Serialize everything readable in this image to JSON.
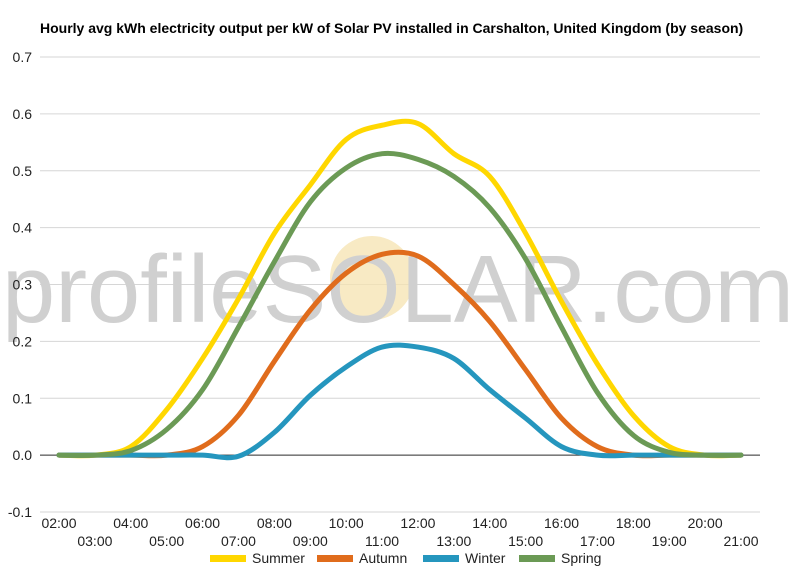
{
  "chart_data": {
    "type": "line",
    "title": "Hourly avg kWh electricity output per kW of Solar PV installed in Carshalton, United Kingdom (by season)",
    "x": [
      "02:00",
      "03:00",
      "04:00",
      "05:00",
      "06:00",
      "07:00",
      "08:00",
      "09:00",
      "10:00",
      "11:00",
      "12:00",
      "13:00",
      "14:00",
      "15:00",
      "16:00",
      "17:00",
      "18:00",
      "19:00",
      "20:00",
      "21:00"
    ],
    "ylim": [
      -0.1,
      0.7
    ],
    "yticks": [
      -0.1,
      0.0,
      0.1,
      0.2,
      0.3,
      0.4,
      0.5,
      0.6,
      0.7
    ],
    "grid": true,
    "legend_position": "bottom",
    "series": [
      {
        "name": "Summer",
        "color": "#ffd700",
        "values": [
          0.0,
          0.0,
          0.015,
          0.08,
          0.17,
          0.275,
          0.39,
          0.475,
          0.555,
          0.58,
          0.583,
          0.53,
          0.49,
          0.39,
          0.27,
          0.16,
          0.07,
          0.015,
          0.0,
          0.0
        ]
      },
      {
        "name": "Autumn",
        "color": "#e06c1c",
        "values": [
          0.0,
          0.0,
          0.0,
          0.0,
          0.015,
          0.07,
          0.165,
          0.255,
          0.32,
          0.353,
          0.35,
          0.3,
          0.235,
          0.15,
          0.065,
          0.015,
          0.0,
          0.0,
          0.0,
          0.0
        ]
      },
      {
        "name": "Winter",
        "color": "#2596be",
        "values": [
          0.0,
          0.0,
          0.0,
          0.0,
          0.0,
          -0.002,
          0.04,
          0.105,
          0.155,
          0.19,
          0.19,
          0.17,
          0.115,
          0.065,
          0.015,
          0.0,
          0.0,
          0.0,
          0.0,
          0.0
        ]
      },
      {
        "name": "Spring",
        "color": "#6b9a55",
        "values": [
          0.0,
          0.0,
          0.008,
          0.045,
          0.115,
          0.225,
          0.34,
          0.445,
          0.505,
          0.53,
          0.52,
          0.49,
          0.435,
          0.345,
          0.225,
          0.11,
          0.035,
          0.005,
          0.0,
          0.0
        ]
      }
    ]
  },
  "watermark": "profileSOLAR.com"
}
